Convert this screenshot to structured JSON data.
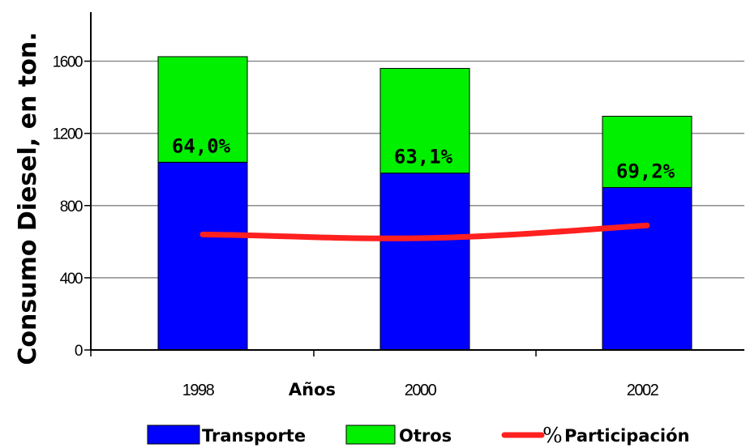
{
  "chart_data": {
    "type": "bar",
    "stacked": true,
    "categories": [
      "1998",
      "2000",
      "2002"
    ],
    "series": [
      {
        "name": "Transporte",
        "values": [
          1040,
          980,
          900
        ],
        "color": "#0000ff"
      },
      {
        "name": "Otros",
        "values": [
          585,
          580,
          395
        ],
        "color": "#00f000"
      }
    ],
    "line_series": {
      "name": "% Participación",
      "legend_symbol": "%",
      "legend_text": "Participación",
      "values": [
        64.0,
        63.1,
        69.2
      ],
      "plotted_y": [
        640,
        620,
        690
      ],
      "color": "#ff2020"
    },
    "data_labels": [
      "64,0%",
      "63,1%",
      "69,2%"
    ],
    "title": "",
    "xlabel": "Años",
    "ylabel": "Consumo Diesel, en ton.",
    "ylim": [
      0,
      1700
    ],
    "yticks": [
      0,
      400,
      800,
      1200,
      1600
    ],
    "grid": true,
    "legend_position": "bottom"
  }
}
